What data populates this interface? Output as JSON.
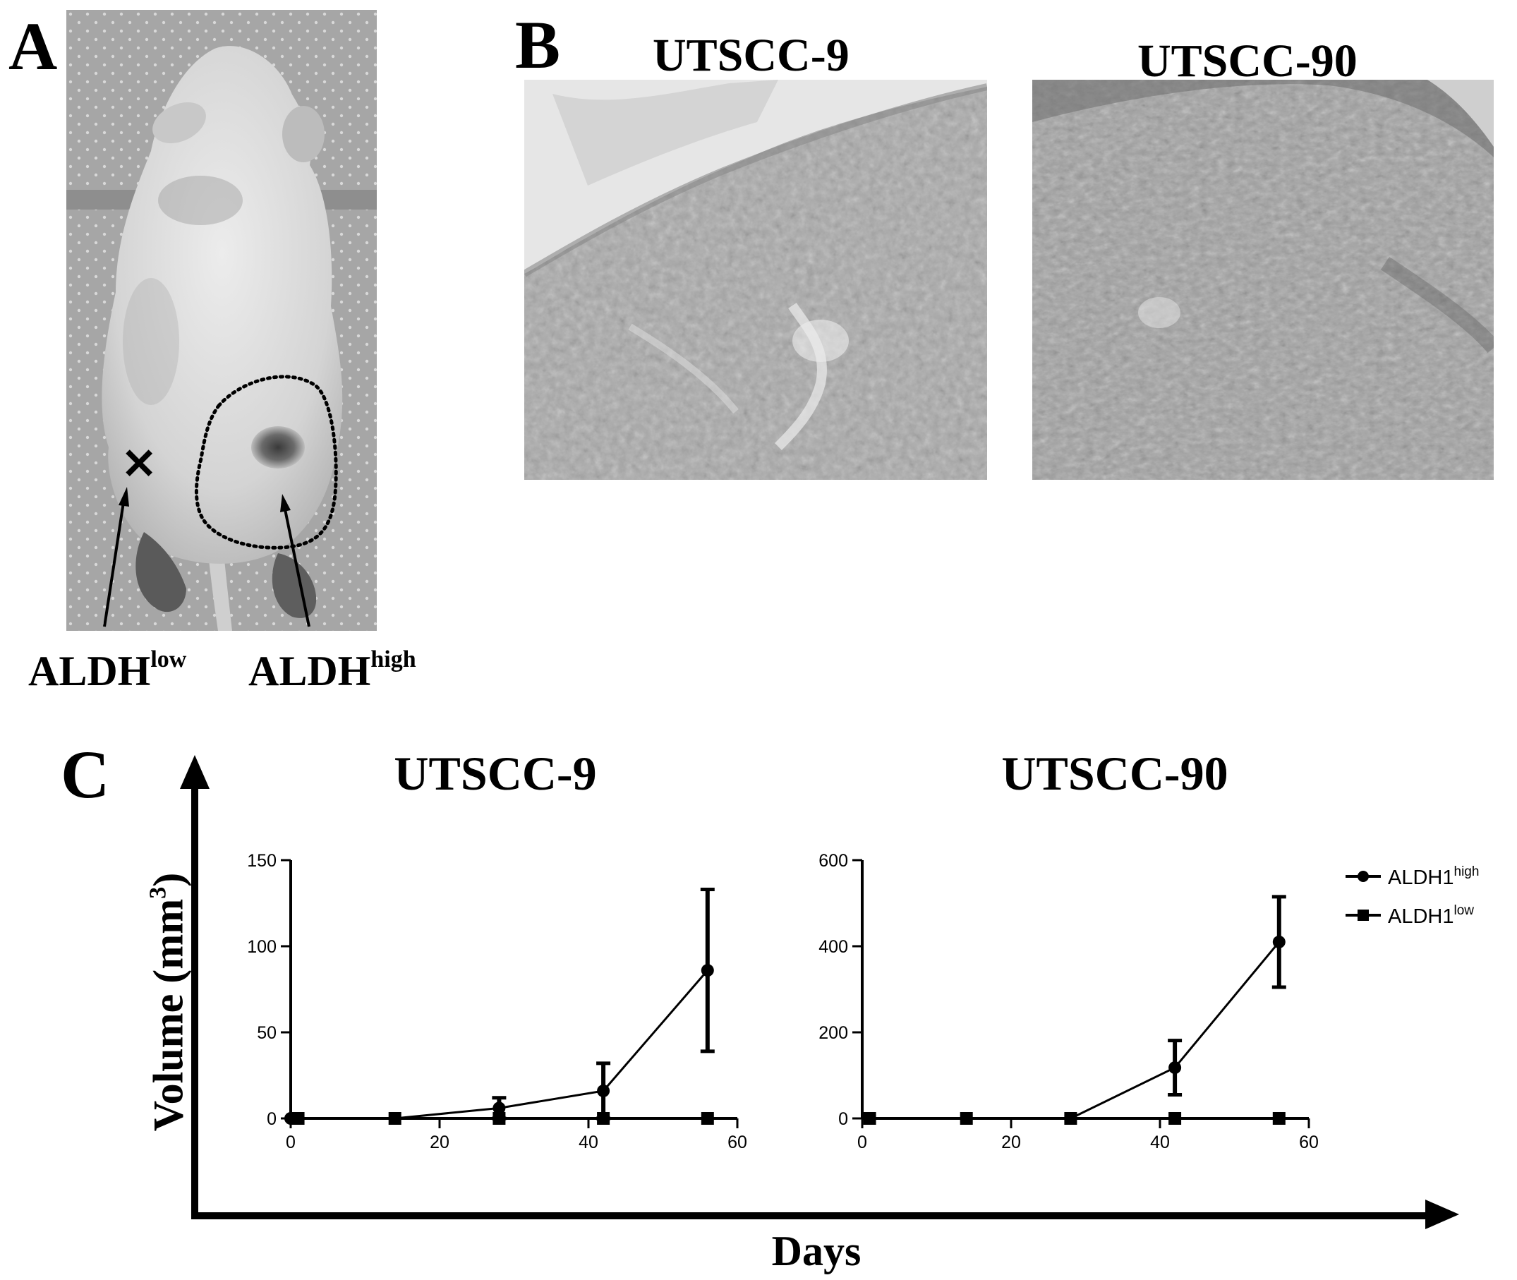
{
  "panel_a": {
    "letter": "A",
    "marker": "✕",
    "label_low_base": "ALDH",
    "label_low_sup": "low",
    "label_high_base": "ALDH",
    "label_high_sup": "high"
  },
  "panel_b": {
    "letter": "B",
    "title_left": "UTSCC-9",
    "title_right": "UTSCC-90"
  },
  "panel_c": {
    "letter": "C",
    "ylabel_text": "Volume (mm",
    "ylabel_sup": "3",
    "ylabel_close": ")",
    "xlabel": "Days",
    "legend": [
      {
        "base": "ALDH1",
        "sup": "high",
        "marker": "circle"
      },
      {
        "base": "ALDH1",
        "sup": "low",
        "marker": "square"
      }
    ]
  },
  "chart_data": [
    {
      "type": "line",
      "title": "UTSCC-9",
      "xlabel": "Days",
      "ylabel": "Volume (mm3)",
      "xlim": [
        0,
        60
      ],
      "ylim": [
        0,
        150
      ],
      "xticks": [
        0,
        20,
        40,
        60
      ],
      "yticks": [
        0,
        50,
        100,
        150
      ],
      "series": [
        {
          "name": "ALDH1high",
          "marker": "circle",
          "x": [
            0,
            14,
            28,
            42,
            56
          ],
          "y": [
            0,
            0,
            6,
            16,
            86
          ],
          "err": [
            0,
            0,
            6,
            16,
            47
          ]
        },
        {
          "name": "ALDH1low",
          "marker": "square",
          "x": [
            1,
            14,
            28,
            42,
            56
          ],
          "y": [
            0,
            0,
            0,
            0,
            0
          ],
          "err": [
            0,
            0,
            0,
            0,
            0
          ]
        }
      ]
    },
    {
      "type": "line",
      "title": "UTSCC-90",
      "xlabel": "Days",
      "ylabel": "Volume (mm3)",
      "xlim": [
        0,
        60
      ],
      "ylim": [
        0,
        600
      ],
      "xticks": [
        0,
        20,
        40,
        60
      ],
      "yticks": [
        0,
        200,
        400,
        600
      ],
      "series": [
        {
          "name": "ALDH1high",
          "marker": "circle",
          "x": [
            1,
            14,
            28,
            42,
            56
          ],
          "y": [
            0,
            0,
            0,
            118,
            410
          ],
          "err": [
            0,
            0,
            0,
            63,
            105
          ]
        },
        {
          "name": "ALDH1low",
          "marker": "square",
          "x": [
            1,
            14,
            28,
            42,
            56
          ],
          "y": [
            0,
            0,
            0,
            0,
            0
          ],
          "err": [
            0,
            0,
            0,
            0,
            0
          ]
        }
      ]
    }
  ]
}
